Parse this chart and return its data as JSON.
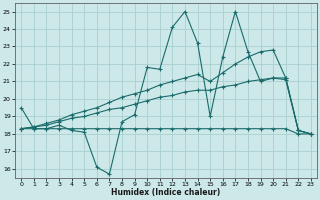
{
  "xlabel": "Humidex (Indice chaleur)",
  "bg_color": "#cce8e8",
  "grid_color": "#aacfcf",
  "line_color": "#1a6b6b",
  "xlim": [
    -0.5,
    23.5
  ],
  "ylim": [
    15.5,
    25.5
  ],
  "xticks": [
    0,
    1,
    2,
    3,
    4,
    5,
    6,
    7,
    8,
    9,
    10,
    11,
    12,
    13,
    14,
    15,
    16,
    17,
    18,
    19,
    20,
    21,
    22,
    23
  ],
  "yticks": [
    16,
    17,
    18,
    19,
    20,
    21,
    22,
    23,
    24,
    25
  ],
  "series": [
    {
      "x": [
        0,
        1,
        2,
        3,
        4,
        5,
        6,
        7,
        8,
        9,
        10,
        11,
        12,
        13,
        14,
        15,
        16,
        17,
        18,
        19,
        20,
        21,
        22,
        23
      ],
      "y": [
        19.5,
        18.3,
        18.3,
        18.5,
        18.2,
        18.1,
        16.1,
        15.7,
        18.7,
        19.1,
        21.8,
        21.7,
        24.1,
        25.0,
        23.2,
        19.0,
        22.4,
        25.0,
        22.7,
        21.0,
        21.2,
        21.1,
        18.2,
        18.0
      ]
    },
    {
      "x": [
        0,
        1,
        2,
        3,
        4,
        5,
        6,
        7,
        8,
        9,
        10,
        11,
        12,
        13,
        14,
        15,
        16,
        17,
        18,
        19,
        20,
        21,
        22,
        23
      ],
      "y": [
        18.3,
        18.3,
        18.3,
        18.3,
        18.3,
        18.3,
        18.3,
        18.3,
        18.3,
        18.3,
        18.3,
        18.3,
        18.3,
        18.3,
        18.3,
        18.3,
        18.3,
        18.3,
        18.3,
        18.3,
        18.3,
        18.3,
        18.0,
        18.0
      ]
    },
    {
      "x": [
        0,
        1,
        2,
        3,
        4,
        5,
        6,
        7,
        8,
        9,
        10,
        11,
        12,
        13,
        14,
        15,
        16,
        17,
        18,
        19,
        20,
        21,
        22,
        23
      ],
      "y": [
        18.3,
        18.4,
        18.5,
        18.7,
        18.9,
        19.0,
        19.2,
        19.4,
        19.5,
        19.7,
        19.9,
        20.1,
        20.2,
        20.4,
        20.5,
        20.5,
        20.7,
        20.8,
        21.0,
        21.1,
        21.2,
        21.2,
        18.2,
        18.0
      ]
    },
    {
      "x": [
        0,
        1,
        2,
        3,
        4,
        5,
        6,
        7,
        8,
        9,
        10,
        11,
        12,
        13,
        14,
        15,
        16,
        17,
        18,
        19,
        20,
        21,
        22,
        23
      ],
      "y": [
        18.3,
        18.4,
        18.6,
        18.8,
        19.1,
        19.3,
        19.5,
        19.8,
        20.1,
        20.3,
        20.5,
        20.8,
        21.0,
        21.2,
        21.4,
        21.0,
        21.5,
        22.0,
        22.4,
        22.7,
        22.8,
        21.2,
        18.2,
        18.0
      ]
    }
  ]
}
